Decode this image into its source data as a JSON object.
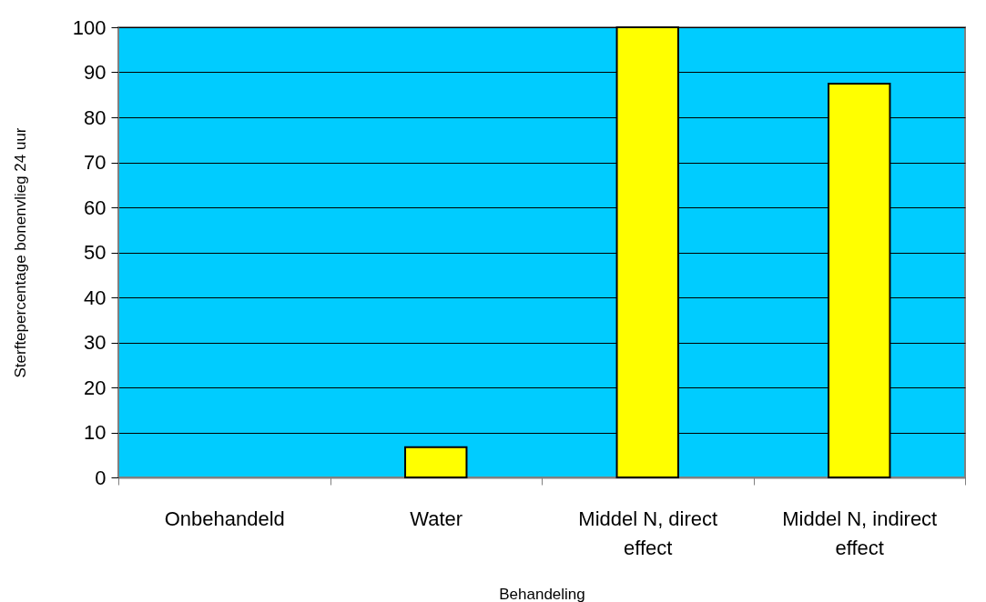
{
  "chart_data": {
    "type": "bar",
    "xlabel": "Behandeling",
    "ylabel": "Sterftepercentage bonenvlieg 24 uur",
    "categories": [
      "Onbehandeld",
      "Water",
      "Middel N, direct effect",
      "Middel N, indirect effect"
    ],
    "values": [
      0,
      6.7,
      100,
      87.5
    ],
    "color": "#ffff00",
    "ylim": [
      0,
      100
    ],
    "yticks": [
      0,
      10,
      20,
      30,
      40,
      50,
      60,
      70,
      80,
      90,
      100
    ],
    "grid": "y"
  }
}
